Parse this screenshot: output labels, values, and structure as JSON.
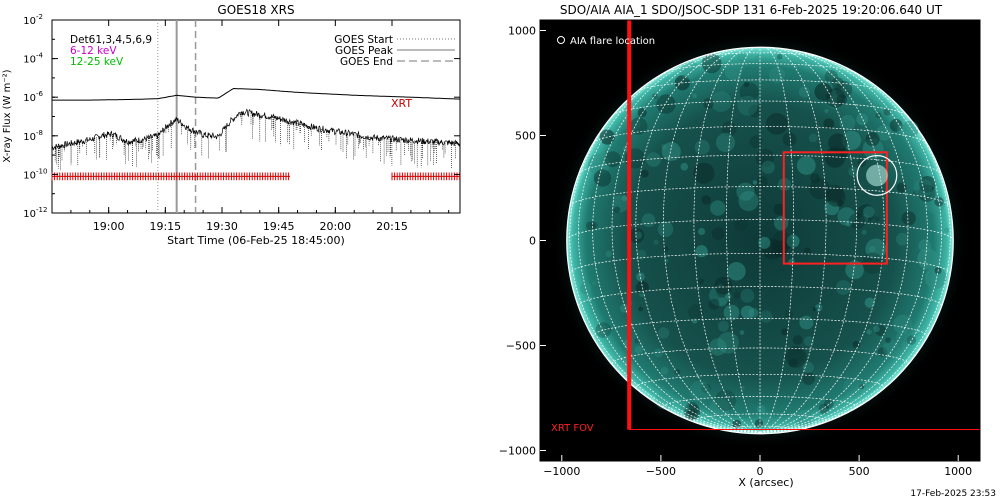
{
  "footer_timestamp": "17-Feb-2025 23:53",
  "chart_data": [
    {
      "type": "line",
      "title": "GOES18 XRS",
      "xlabel": "Start Time (06-Feb-25 18:45:00)",
      "ylabel": "X-ray Flux (W m⁻²)",
      "y_scale": "log",
      "ylim": [
        "1e-12",
        "1e-2"
      ],
      "x_range_minutes_from_start": [
        0,
        108
      ],
      "x_ticks": [
        {
          "label": "19:00",
          "t": 15
        },
        {
          "label": "19:15",
          "t": 30
        },
        {
          "label": "19:30",
          "t": 45
        },
        {
          "label": "19:45",
          "t": 60
        },
        {
          "label": "20:00",
          "t": 75
        },
        {
          "label": "20:15",
          "t": 90
        }
      ],
      "y_ticks": [
        {
          "label": "10",
          "exp": "-2",
          "v": -2
        },
        {
          "label": "10",
          "exp": "-4",
          "v": -4
        },
        {
          "label": "10",
          "exp": "-6",
          "v": -6
        },
        {
          "label": "10",
          "exp": "-8",
          "v": -8
        },
        {
          "label": "10",
          "exp": "-10",
          "v": -10
        },
        {
          "label": "10",
          "exp": "-12",
          "v": -12
        }
      ],
      "legend_left": [
        {
          "text": "Det61,3,4,5,6,9",
          "color": "#000000"
        },
        {
          "text": "6-12 keV",
          "color": "#cc00cc"
        },
        {
          "text": "12-25 keV",
          "color": "#00cc00"
        }
      ],
      "legend_right": [
        {
          "text": "GOES Start",
          "style": "dotted"
        },
        {
          "text": "GOES Peak",
          "style": "solid"
        },
        {
          "text": "GOES End",
          "style": "dashed"
        }
      ],
      "annotation": {
        "text": "XRT",
        "color": "#cc0000"
      },
      "event_lines": {
        "start": 28,
        "peak": 33,
        "end": 38
      },
      "series": [
        {
          "points_log10": [
            [
              0,
              -6.15
            ],
            [
              10,
              -6.15
            ],
            [
              20,
              -6.12
            ],
            [
              28,
              -6.08
            ],
            [
              33,
              -5.9
            ],
            [
              38,
              -6.0
            ],
            [
              44,
              -6.05
            ],
            [
              48,
              -5.55
            ],
            [
              55,
              -5.6
            ],
            [
              65,
              -5.75
            ],
            [
              80,
              -5.9
            ],
            [
              95,
              -6.0
            ],
            [
              108,
              -6.1
            ]
          ]
        },
        {
          "points_log10": [
            [
              0,
              -8.6
            ],
            [
              5,
              -8.4
            ],
            [
              10,
              -8.2
            ],
            [
              13,
              -8.0
            ],
            [
              16,
              -7.9
            ],
            [
              20,
              -8.3
            ],
            [
              24,
              -8.2
            ],
            [
              28,
              -8.0
            ],
            [
              31,
              -7.4
            ],
            [
              33,
              -7.15
            ],
            [
              36,
              -7.6
            ],
            [
              40,
              -7.95
            ],
            [
              44,
              -8.05
            ],
            [
              47,
              -7.3
            ],
            [
              50,
              -6.75
            ],
            [
              58,
              -7.0
            ],
            [
              70,
              -7.6
            ],
            [
              85,
              -8.1
            ],
            [
              100,
              -8.3
            ],
            [
              108,
              -8.4
            ]
          ]
        }
      ],
      "xrt_tick_ranges": [
        [
          0,
          63
        ],
        [
          90,
          108
        ]
      ]
    },
    {
      "type": "scatter",
      "title": "SDO/AIA AIA_1 SDO/JSOC-SDP 131  6-Feb-2025 19:20:06.640 UT",
      "xlabel": "X (arcsec)",
      "ylabel": "",
      "xlim": [
        -1110,
        1110
      ],
      "ylim": [
        -1050,
        1050
      ],
      "x_ticks": [
        -1000,
        -500,
        0,
        500,
        1000
      ],
      "y_ticks": [
        -1000,
        -500,
        0,
        500,
        1000
      ],
      "legend": "AIA flare location",
      "fov_label": "XRT FOV",
      "xrt_fov": {
        "x0": -660,
        "x1": 1110,
        "y0": -900,
        "y1": 1050
      },
      "box": {
        "x0": 120,
        "x1": 640,
        "y0": -110,
        "y1": 420
      },
      "flare_location": {
        "x": 590,
        "y": 310,
        "radius": 100
      },
      "solar_radius": 975,
      "grid_spacing_deg": 10
    }
  ]
}
